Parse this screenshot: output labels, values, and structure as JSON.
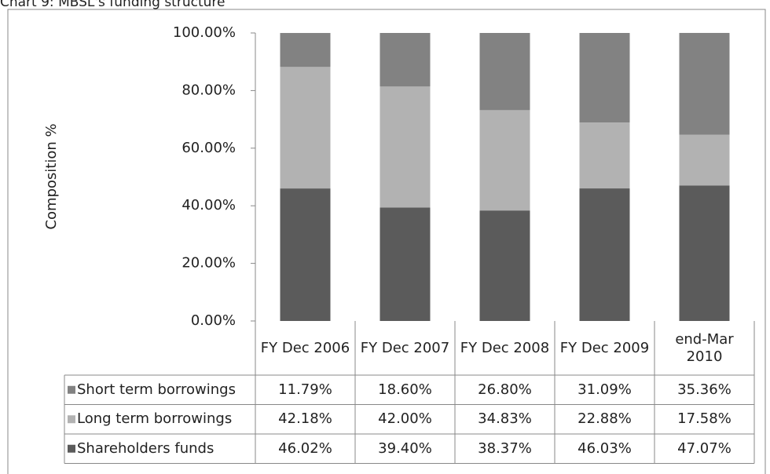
{
  "chart_data": {
    "type": "bar",
    "stacked": true,
    "title": "Chart 9: MBSL's funding structure",
    "y_label": "Composition %",
    "categories": [
      "FY Dec 2006",
      "FY Dec 2007",
      "FY Dec 2008",
      "FY Dec 2009",
      "end-Mar 2010"
    ],
    "series": [
      {
        "name": "Shareholders funds",
        "color": "#5b5b5b",
        "values": [
          46.02,
          39.4,
          38.37,
          46.03,
          47.07
        ],
        "value_labels": [
          "46.02%",
          "39.40%",
          "38.37%",
          "46.03%",
          "47.07%"
        ]
      },
      {
        "name": "Long term borrowings",
        "color": "#b2b2b2",
        "values": [
          42.18,
          42.0,
          34.83,
          22.88,
          17.58
        ],
        "value_labels": [
          "42.18%",
          "42.00%",
          "34.83%",
          "22.88%",
          "17.58%"
        ]
      },
      {
        "name": "Short term borrowings",
        "color": "#828282",
        "values": [
          11.79,
          18.6,
          26.8,
          31.09,
          35.36
        ],
        "value_labels": [
          "11.79%",
          "18.60%",
          "26.80%",
          "31.09%",
          "35.36%"
        ]
      }
    ],
    "ylim": [
      0,
      100
    ],
    "yticks": [
      {
        "value": 0,
        "label": "0.00%"
      },
      {
        "value": 20,
        "label": "20.00%"
      },
      {
        "value": 40,
        "label": "40.00%"
      },
      {
        "value": 60,
        "label": "60.00%"
      },
      {
        "value": 80,
        "label": "80.00%"
      },
      {
        "value": 100,
        "label": "100.00%"
      }
    ],
    "grid": false
  }
}
